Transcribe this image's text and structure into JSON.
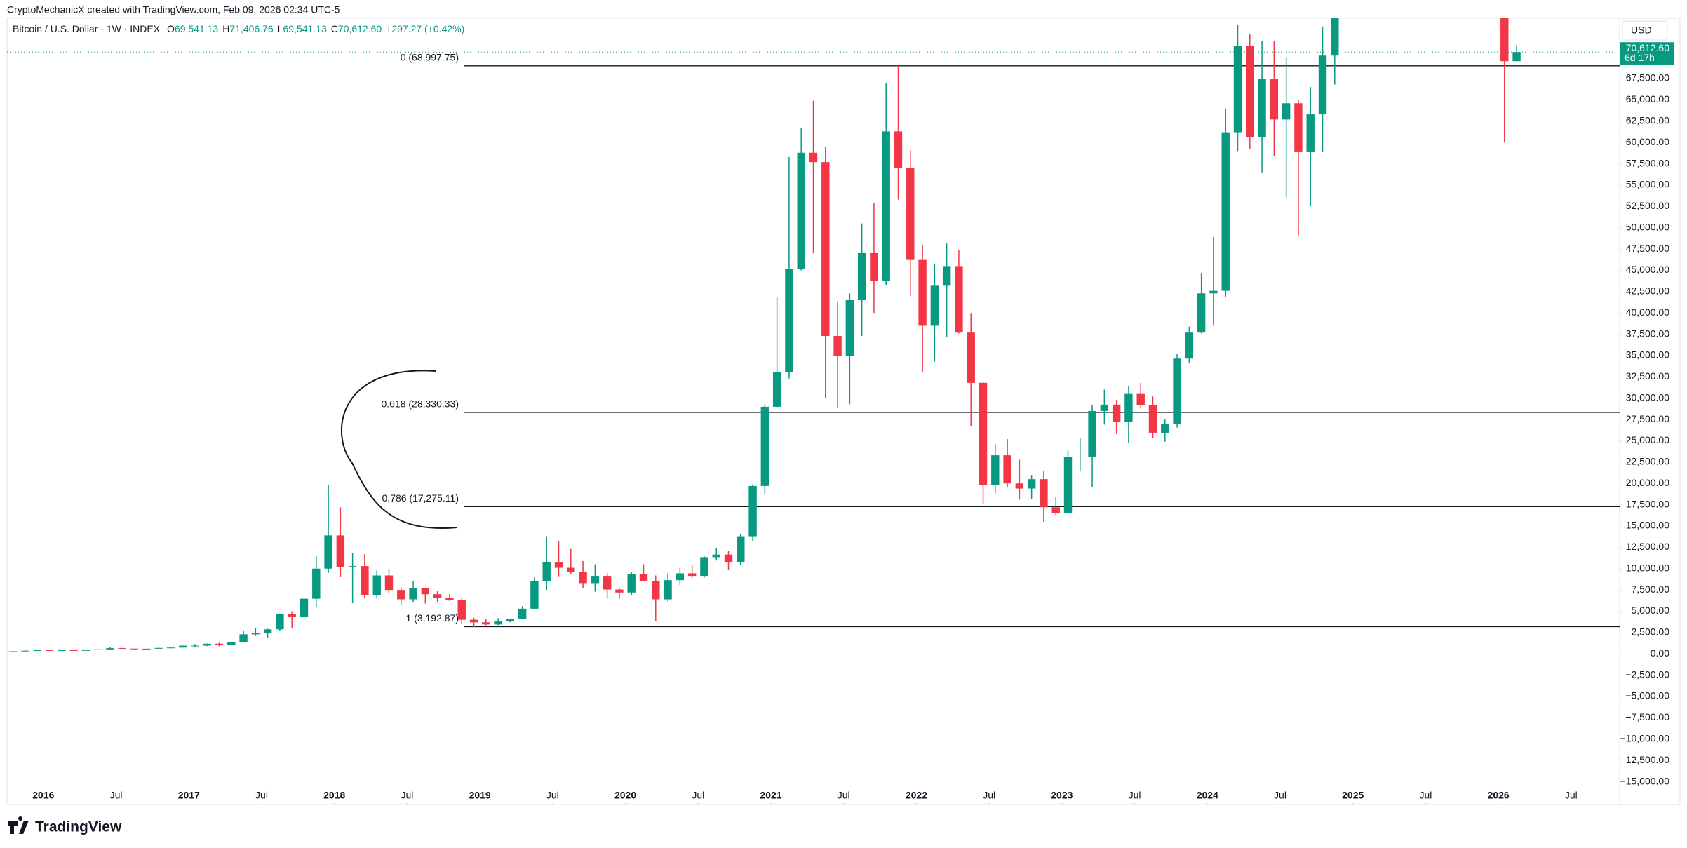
{
  "header": "CryptoMechanicX created with TradingView.com, Feb 09, 2026 02:34 UTC-5",
  "brand": "TradingView",
  "chart_data": {
    "type": "candlestick",
    "legend": {
      "symbol": "Bitcoin / U.S. Dollar · 1W · INDEX",
      "o_label": "O",
      "o": "69,541.13",
      "h_label": "H",
      "h": "71,406.76",
      "l_label": "L",
      "l": "69,541.13",
      "c_label": "C",
      "c": "70,612.60",
      "change": "+297.27 (+0.42%)"
    },
    "currency": "USD",
    "current_price": {
      "value": 70612.6,
      "label": "70,612.60"
    },
    "countdown": "6d 17h",
    "up_color": "#089981",
    "down_color": "#f23645",
    "x": [
      "2015-10",
      "2015-11",
      "2015-12",
      "2016-01",
      "2016-02",
      "2016-03",
      "2016-04",
      "2016-05",
      "2016-06",
      "2016-07",
      "2016-08",
      "2016-09",
      "2016-10",
      "2016-11",
      "2016-12",
      "2017-01",
      "2017-02",
      "2017-03",
      "2017-04",
      "2017-05",
      "2017-06",
      "2017-07",
      "2017-08",
      "2017-09",
      "2017-10",
      "2017-11",
      "2017-12",
      "2018-01",
      "2018-02",
      "2018-03",
      "2018-04",
      "2018-05",
      "2018-06",
      "2018-07",
      "2018-08",
      "2018-09",
      "2018-10",
      "2018-11",
      "2018-12",
      "2019-01",
      "2019-02",
      "2019-03",
      "2019-04",
      "2019-05",
      "2019-06",
      "2019-07",
      "2019-08",
      "2019-09",
      "2019-10",
      "2019-11",
      "2019-12",
      "2020-01",
      "2020-02",
      "2020-03",
      "2020-04",
      "2020-05",
      "2020-06",
      "2020-07",
      "2020-08",
      "2020-09",
      "2020-10",
      "2020-11",
      "2020-12",
      "2021-01",
      "2021-02",
      "2021-03",
      "2021-04",
      "2021-05",
      "2021-06",
      "2021-07",
      "2021-08",
      "2021-09",
      "2021-10",
      "2021-11",
      "2021-12",
      "2022-01",
      "2022-02",
      "2022-03",
      "2022-04",
      "2022-05",
      "2022-06",
      "2022-07",
      "2022-08",
      "2022-09",
      "2022-10",
      "2022-11",
      "2022-12",
      "2023-01",
      "2023-02",
      "2023-03",
      "2023-04",
      "2023-05",
      "2023-06",
      "2023-07",
      "2023-08",
      "2023-09",
      "2023-10",
      "2023-11",
      "2023-12",
      "2024-01",
      "2024-02",
      "2024-03",
      "2024-04",
      "2024-05",
      "2024-06",
      "2024-07",
      "2024-08",
      "2024-09",
      "2024-10",
      "2024-11",
      "2026-01",
      "2026-02"
    ],
    "open": [
      236,
      314,
      377,
      430,
      368,
      437,
      416,
      448,
      531,
      673,
      624,
      575,
      609,
      700,
      742,
      963,
      970,
      1190,
      1080,
      1350,
      2300,
      2480,
      2875,
      4700,
      4340,
      6470,
      10000,
      13900,
      10200,
      10300,
      6900,
      9200,
      7500,
      6400,
      7700,
      7000,
      6600,
      6300,
      4000,
      3700,
      3450,
      3800,
      4100,
      5300,
      8550,
      10800,
      10100,
      9600,
      8300,
      9150,
      7550,
      7200,
      9350,
      8550,
      6400,
      8650,
      9450,
      9150,
      11350,
      11650,
      10800,
      13800,
      19700,
      29000,
      33100,
      45200,
      58800,
      57700,
      37300,
      35000,
      41500,
      47100,
      43800,
      61300,
      57000,
      46300,
      38500,
      43200,
      45500,
      37700,
      31800,
      19800,
      23300,
      20000,
      19400,
      20500,
      17200,
      16550,
      23100,
      23150,
      28500,
      29250,
      27200,
      30500,
      29200,
      25950,
      26970,
      34650,
      37700,
      42300,
      42600,
      61200,
      71300,
      60650,
      67500,
      62700,
      64600,
      58950,
      63300,
      70200,
      95000,
      69541.13
    ],
    "high": [
      330,
      495,
      465,
      460,
      445,
      440,
      468,
      550,
      780,
      705,
      625,
      610,
      720,
      750,
      980,
      1150,
      1200,
      1300,
      1350,
      2760,
      3000,
      2950,
      4750,
      5000,
      6470,
      11500,
      19800,
      17200,
      11800,
      11700,
      9800,
      9950,
      7800,
      8500,
      7750,
      7400,
      7000,
      6550,
      4250,
      4100,
      4200,
      4100,
      5600,
      9000,
      13800,
      13200,
      12300,
      10900,
      10500,
      9500,
      7750,
      9600,
      10500,
      9200,
      9450,
      10100,
      10400,
      11450,
      12450,
      12100,
      14100,
      19900,
      29300,
      41900,
      58300,
      61700,
      64900,
      59500,
      41300,
      42300,
      50500,
      52900,
      67000,
      69000,
      59100,
      48000,
      45800,
      48200,
      47400,
      40000,
      31900,
      24600,
      25200,
      22800,
      21000,
      21500,
      18400,
      23900,
      25300,
      29200,
      31000,
      29800,
      31400,
      31800,
      30200,
      27500,
      35200,
      38400,
      44700,
      48900,
      63900,
      73800,
      72700,
      71900,
      71900,
      70000,
      65000,
      66500,
      73600,
      99500,
      98000,
      71406.76
    ],
    "low": [
      236,
      300,
      350,
      355,
      365,
      400,
      415,
      435,
      525,
      600,
      470,
      570,
      605,
      680,
      740,
      750,
      920,
      890,
      1060,
      1350,
      2100,
      1830,
      2670,
      2970,
      4150,
      5500,
      9500,
      9000,
      6000,
      6600,
      6500,
      7100,
      5800,
      6100,
      5900,
      6100,
      6200,
      3500,
      3150,
      3350,
      3380,
      3700,
      4050,
      5300,
      7500,
      9100,
      9400,
      7700,
      7300,
      6500,
      6450,
      6850,
      8500,
      3850,
      6150,
      8100,
      8900,
      8950,
      10950,
      9850,
      10400,
      13200,
      18750,
      28800,
      32300,
      45000,
      47000,
      30000,
      28800,
      29300,
      37300,
      40000,
      43300,
      53300,
      42000,
      33000,
      34300,
      37200,
      37600,
      26700,
      17600,
      18800,
      19600,
      18100,
      18200,
      15500,
      16300,
      16500,
      21400,
      19550,
      26900,
      25800,
      24800,
      28900,
      25300,
      24900,
      26550,
      34100,
      37600,
      38500,
      41900,
      59000,
      59200,
      56500,
      58400,
      53500,
      49100,
      52500,
      58900,
      66800,
      60000,
      69541.13
    ],
    "close": [
      314,
      377,
      430,
      368,
      437,
      416,
      448,
      531,
      673,
      624,
      575,
      609,
      700,
      742,
      963,
      970,
      1190,
      1080,
      1350,
      2300,
      2480,
      2875,
      4700,
      4340,
      6470,
      10000,
      13900,
      10200,
      10300,
      6900,
      9200,
      7500,
      6400,
      7700,
      7000,
      6600,
      6300,
      4000,
      3700,
      3450,
      3800,
      4100,
      5300,
      8550,
      10800,
      10100,
      9600,
      8300,
      9150,
      7550,
      7200,
      9350,
      8550,
      6400,
      8650,
      9450,
      9150,
      11350,
      11650,
      10800,
      13800,
      19700,
      29000,
      33100,
      45200,
      58800,
      57700,
      37300,
      35000,
      41500,
      47100,
      43800,
      61300,
      57000,
      46300,
      38500,
      43200,
      45500,
      37700,
      31800,
      19800,
      23300,
      20000,
      19400,
      20500,
      17200,
      16550,
      23100,
      23150,
      28500,
      29250,
      27200,
      30500,
      29200,
      25950,
      26970,
      34650,
      37700,
      42300,
      42600,
      61200,
      71300,
      60650,
      67500,
      62700,
      64600,
      58950,
      63300,
      70200,
      96400,
      69541.13,
      70612.6
    ],
    "levels": [
      {
        "label": "0 (68,997.75)",
        "value": 68997.75
      },
      {
        "label": "0.618 (28,330.33)",
        "value": 28330.33
      },
      {
        "label": "0.786 (17,275.11)",
        "value": 17275.11
      },
      {
        "label": "1 (3,192.87)",
        "value": 3192.87
      }
    ],
    "xlim": [
      "2015-10",
      "2026-11"
    ],
    "xticks": [
      {
        "value": "2016-01",
        "label": "2016"
      },
      {
        "value": "2016-07",
        "label": "Jul"
      },
      {
        "value": "2017-01",
        "label": "2017"
      },
      {
        "value": "2017-07",
        "label": "Jul"
      },
      {
        "value": "2018-01",
        "label": "2018"
      },
      {
        "value": "2018-07",
        "label": "Jul"
      },
      {
        "value": "2019-01",
        "label": "2019"
      },
      {
        "value": "2019-07",
        "label": "Jul"
      },
      {
        "value": "2020-01",
        "label": "2020"
      },
      {
        "value": "2020-07",
        "label": "Jul"
      },
      {
        "value": "2021-01",
        "label": "2021"
      },
      {
        "value": "2021-07",
        "label": "Jul"
      },
      {
        "value": "2022-01",
        "label": "2022"
      },
      {
        "value": "2022-07",
        "label": "Jul"
      },
      {
        "value": "2023-01",
        "label": "2023"
      },
      {
        "value": "2023-07",
        "label": "Jul"
      },
      {
        "value": "2024-01",
        "label": "2024"
      },
      {
        "value": "2024-07",
        "label": "Jul"
      },
      {
        "value": "2025-01",
        "label": "2025"
      },
      {
        "value": "2025-07",
        "label": "Jul"
      },
      {
        "value": "2026-01",
        "label": "2026"
      },
      {
        "value": "2026-07",
        "label": "Jul"
      }
    ],
    "ylim": [
      -17670,
      74580
    ],
    "yticks": [
      {
        "value": -15000,
        "label": "−15,000.00"
      },
      {
        "value": -12500,
        "label": "−12,500.00"
      },
      {
        "value": -10000,
        "label": "−10,000.00"
      },
      {
        "value": -7500,
        "label": "−7,500.00"
      },
      {
        "value": -5000,
        "label": "−5,000.00"
      },
      {
        "value": -2500,
        "label": "−2,500.00"
      },
      {
        "value": 0,
        "label": "0.00"
      },
      {
        "value": 2500,
        "label": "2,500.00"
      },
      {
        "value": 5000,
        "label": "5,000.00"
      },
      {
        "value": 7500,
        "label": "7,500.00"
      },
      {
        "value": 10000,
        "label": "10,000.00"
      },
      {
        "value": 12500,
        "label": "12,500.00"
      },
      {
        "value": 15000,
        "label": "15,000.00"
      },
      {
        "value": 17500,
        "label": "17,500.00"
      },
      {
        "value": 20000,
        "label": "20,000.00"
      },
      {
        "value": 22500,
        "label": "22,500.00"
      },
      {
        "value": 25000,
        "label": "25,000.00"
      },
      {
        "value": 27500,
        "label": "27,500.00"
      },
      {
        "value": 30000,
        "label": "30,000.00"
      },
      {
        "value": 32500,
        "label": "32,500.00"
      },
      {
        "value": 35000,
        "label": "35,000.00"
      },
      {
        "value": 37500,
        "label": "37,500.00"
      },
      {
        "value": 40000,
        "label": "40,000.00"
      },
      {
        "value": 42500,
        "label": "42,500.00"
      },
      {
        "value": 45000,
        "label": "45,000.00"
      },
      {
        "value": 47500,
        "label": "47,500.00"
      },
      {
        "value": 50000,
        "label": "50,000.00"
      },
      {
        "value": 52500,
        "label": "52,500.00"
      },
      {
        "value": 55000,
        "label": "55,000.00"
      },
      {
        "value": 57500,
        "label": "57,500.00"
      },
      {
        "value": 60000,
        "label": "60,000.00"
      },
      {
        "value": 62500,
        "label": "62,500.00"
      },
      {
        "value": 65000,
        "label": "65,000.00"
      },
      {
        "value": 67500,
        "label": "67,500.00"
      }
    ],
    "grid": false
  }
}
